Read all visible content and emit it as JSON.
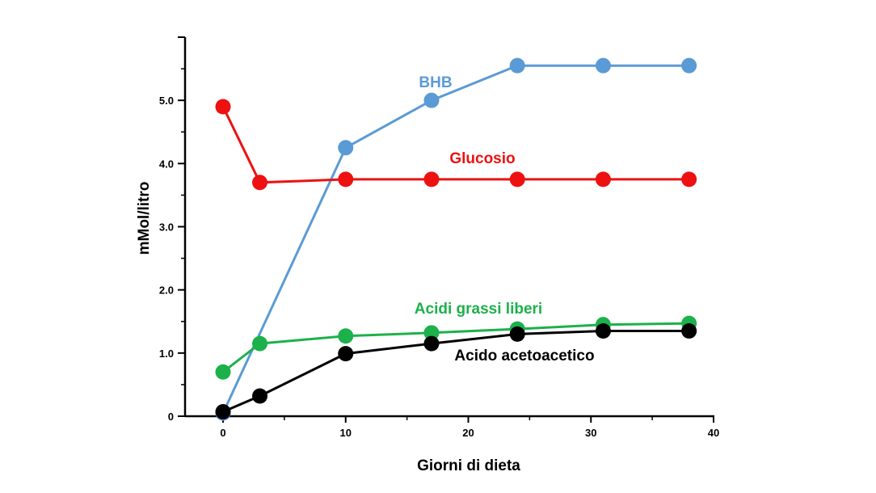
{
  "chart_data": {
    "type": "line",
    "xlabel": "Giorni di dieta",
    "ylabel": "mMol/litro",
    "xlim": [
      0,
      40
    ],
    "ylim": [
      0,
      6.0
    ],
    "x_ticks": [
      0,
      10,
      20,
      30,
      40
    ],
    "x_tick_labels": [
      "0",
      "10",
      "20",
      "30",
      "40"
    ],
    "y_ticks": [
      0,
      1.0,
      2.0,
      3.0,
      4.0,
      5.0
    ],
    "y_tick_labels": [
      "0",
      "1.0",
      "2.0",
      "3.0",
      "4.0",
      "5.0"
    ],
    "grid": false,
    "legend": "inline labels",
    "series": [
      {
        "name": "BHB",
        "color": "#5b9bd5",
        "x": [
          0,
          10,
          17,
          24,
          31,
          38
        ],
        "y": [
          0.05,
          4.25,
          5.0,
          5.55,
          5.55,
          5.55
        ]
      },
      {
        "name": "Glucosio",
        "color": "#ee1111",
        "x": [
          0,
          3,
          10,
          17,
          24,
          31,
          38
        ],
        "y": [
          4.9,
          3.7,
          3.75,
          3.75,
          3.75,
          3.75,
          3.75
        ]
      },
      {
        "name": "Acidi grassi liberi",
        "color": "#1db14b",
        "x": [
          0,
          3,
          10,
          17,
          24,
          31,
          38
        ],
        "y": [
          0.7,
          1.15,
          1.27,
          1.32,
          1.38,
          1.45,
          1.47
        ]
      },
      {
        "name": "Acido acetoacetico",
        "color": "#000000",
        "x": [
          0,
          3,
          10,
          17,
          24,
          31,
          38
        ],
        "y": [
          0.07,
          0.32,
          0.99,
          1.15,
          1.3,
          1.35,
          1.35
        ]
      }
    ]
  }
}
